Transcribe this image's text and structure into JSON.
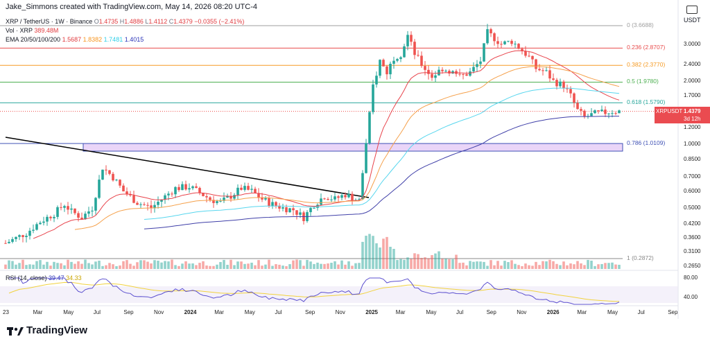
{
  "header": {
    "author_line": "Jake_Simmons created with TradingView.com, May 14, 2026 08:20 UTC-4",
    "symbol": "XRP / TetherUS · 1W · Binance",
    "o_label": "O",
    "o": "1.4735",
    "h_label": "H",
    "h": "1.4886",
    "l_label": "L",
    "l": "1.4112",
    "c_label": "C",
    "c": "1.4379",
    "change": "−0.0355 (−2.41%)",
    "vol_label": "Vol · XRP",
    "vol": "389.48M",
    "ema_label": "EMA 20/50/100/200",
    "ema20": "1.5687",
    "ema50": "1.8382",
    "ema100": "1.7481",
    "ema200": "1.4015",
    "currency": "USDT"
  },
  "badge": {
    "symbol": "XRPUSDT",
    "price": "1.4379",
    "countdown": "3d 12h"
  },
  "rsi": {
    "label": "RSI (14, close)",
    "v1": "39.47",
    "v2": "34.33",
    "tick_high": "80.00",
    "tick_low": "40.00"
  },
  "brand": {
    "name": "TradingView"
  },
  "colors": {
    "up": "#26a69a",
    "down": "#ef5350",
    "ema20": "#e8434b",
    "ema50": "#f5a04a",
    "ema100": "#57d6ee",
    "ema200": "#3f3fa8",
    "rsi": "#5b4fcf",
    "rsi_ma": "#f1d23d",
    "zone": "#d9b3f2",
    "trendline": "#000000"
  },
  "chart_data": {
    "type": "candlestick",
    "timeframe": "1W",
    "y_scale": "log",
    "price_ticks": [
      "3.0000",
      "2.4000",
      "2.0000",
      "1.7000",
      "1.4379",
      "1.2000",
      "1.0000",
      "0.8500",
      "0.7000",
      "0.6000",
      "0.5000",
      "0.4200",
      "0.3600",
      "0.3100",
      "0.2650"
    ],
    "x_ticks": [
      "23",
      "Mar",
      "May",
      "Jul",
      "Sep",
      "Nov",
      "2024",
      "Mar",
      "May",
      "Jul",
      "Sep",
      "Nov",
      "2025",
      "Mar",
      "May",
      "Jul",
      "Sep",
      "Nov",
      "2026",
      "Mar",
      "May",
      "Jul",
      "Sep"
    ],
    "fib_levels": [
      {
        "label": "0 (3.6688)",
        "price": 3.6688,
        "color": "#9e9e9e"
      },
      {
        "label": "0.236 (2.8707)",
        "price": 2.8707,
        "color": "#e84b4b"
      },
      {
        "label": "0.382 (2.3770)",
        "price": 2.377,
        "color": "#f59a23"
      },
      {
        "label": "0.5 (1.9780)",
        "price": 1.978,
        "color": "#4caf50"
      },
      {
        "label": "0.618 (1.5790)",
        "price": 1.579,
        "color": "#26a69a"
      },
      {
        "label": "0.786 (1.0109)",
        "price": 1.0109,
        "color": "#3f51b5"
      },
      {
        "label": "1 (0.2872)",
        "price": 0.2872,
        "color": "#888888"
      }
    ],
    "support_zone": {
      "from": 0.93,
      "to": 1.0109
    },
    "price_path": [
      [
        0,
        0.34
      ],
      [
        6,
        0.38
      ],
      [
        10,
        0.43
      ],
      [
        14,
        0.47
      ],
      [
        17,
        0.52
      ],
      [
        19,
        0.48
      ],
      [
        22,
        0.45
      ],
      [
        25,
        0.5
      ],
      [
        28,
        0.78
      ],
      [
        31,
        0.7
      ],
      [
        34,
        0.6
      ],
      [
        38,
        0.53
      ],
      [
        42,
        0.5
      ],
      [
        45,
        0.55
      ],
      [
        49,
        0.62
      ],
      [
        53,
        0.63
      ],
      [
        56,
        0.59
      ],
      [
        59,
        0.55
      ],
      [
        62,
        0.53
      ],
      [
        65,
        0.57
      ],
      [
        68,
        0.62
      ],
      [
        71,
        0.6
      ],
      [
        74,
        0.55
      ],
      [
        77,
        0.52
      ],
      [
        80,
        0.5
      ],
      [
        83,
        0.49
      ],
      [
        86,
        0.45
      ],
      [
        89,
        0.52
      ],
      [
        92,
        0.57
      ],
      [
        95,
        0.55
      ],
      [
        98,
        0.58
      ],
      [
        100,
        0.56
      ],
      [
        102,
        0.54
      ],
      [
        104,
        1.0
      ],
      [
        106,
        1.9
      ],
      [
        108,
        2.5
      ],
      [
        110,
        2.2
      ],
      [
        112,
        2.6
      ],
      [
        114,
        2.7
      ],
      [
        116,
        3.3
      ],
      [
        118,
        2.7
      ],
      [
        120,
        2.4
      ],
      [
        123,
        2.1
      ],
      [
        126,
        2.3
      ],
      [
        129,
        2.2
      ],
      [
        131,
        2.1
      ],
      [
        134,
        2.2
      ],
      [
        137,
        2.5
      ],
      [
        139,
        3.4
      ],
      [
        141,
        3.2
      ],
      [
        143,
        3.0
      ],
      [
        146,
        3.1
      ],
      [
        149,
        2.8
      ],
      [
        151,
        2.6
      ],
      [
        153,
        2.3
      ],
      [
        156,
        2.2
      ],
      [
        158,
        2.0
      ],
      [
        161,
        1.9
      ],
      [
        163,
        1.7
      ],
      [
        165,
        1.45
      ],
      [
        167,
        1.35
      ],
      [
        170,
        1.4
      ],
      [
        173,
        1.42
      ],
      [
        175,
        1.44
      ],
      [
        177,
        1.4379
      ]
    ],
    "volume": "weekly volume bars, ~0.2x–4x relative, spike around 2024 Nov",
    "indicators": {
      "ema20": 1.5687,
      "ema50": 1.8382,
      "ema100": 1.7481,
      "ema200": 1.4015
    },
    "rsi_values": {
      "rsi": 39.47,
      "rsi_ma": 34.33
    }
  }
}
